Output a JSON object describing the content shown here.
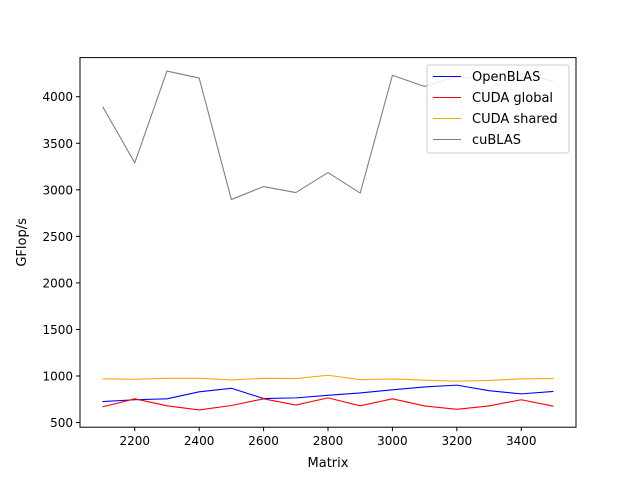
{
  "chart_data": {
    "type": "line",
    "xlabel": "Matrix",
    "ylabel": "GFlop/s",
    "xlim": [
      2030,
      3570
    ],
    "ylim": [
      450,
      4420
    ],
    "xticks": [
      2200,
      2400,
      2600,
      2800,
      3000,
      3200,
      3400
    ],
    "yticks": [
      500,
      1000,
      1500,
      2000,
      2500,
      3000,
      3500,
      4000
    ],
    "grid": false,
    "legend_position": "top-right",
    "x": [
      2100,
      2200,
      2300,
      2400,
      2500,
      2600,
      2700,
      2800,
      2900,
      3000,
      3100,
      3200,
      3300,
      3400,
      3500
    ],
    "series": [
      {
        "name": "OpenBLAS",
        "color": "#0000ff",
        "values": [
          725,
          745,
          755,
          830,
          868,
          758,
          765,
          792,
          818,
          852,
          882,
          902,
          842,
          808,
          834
        ]
      },
      {
        "name": "CUDA global",
        "color": "#ff0000",
        "values": [
          668,
          755,
          680,
          635,
          683,
          755,
          688,
          765,
          680,
          755,
          678,
          642,
          678,
          745,
          676
        ]
      },
      {
        "name": "CUDA shared",
        "color": "#ffa500",
        "values": [
          970,
          965,
          975,
          975,
          958,
          975,
          972,
          1008,
          960,
          968,
          955,
          945,
          952,
          970,
          972
        ]
      },
      {
        "name": "cuBLAS",
        "color": "#808080",
        "values": [
          3895,
          3290,
          4275,
          4200,
          2895,
          3035,
          2970,
          3185,
          2965,
          4230,
          4110,
          4215,
          4180,
          4250,
          4165
        ]
      }
    ]
  }
}
